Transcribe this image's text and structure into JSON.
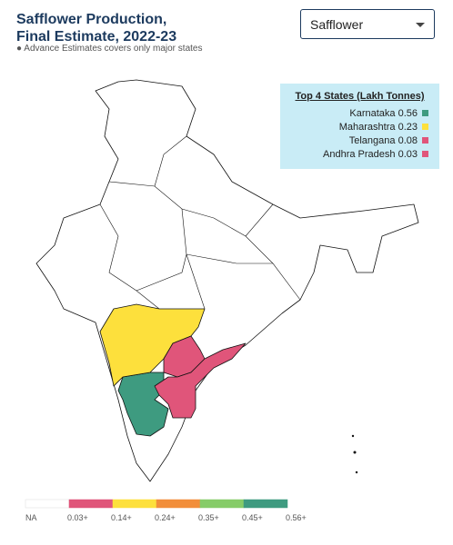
{
  "header": {
    "title_lines": [
      "Safflower Production,",
      "Final Estimate, 2022-23"
    ],
    "note": "Advance Estimates covers only major states"
  },
  "dropdown": {
    "selected": "Safflower"
  },
  "top_states": {
    "title": "Top 4 States (Lakh Tonnes)",
    "rows": [
      {
        "state": "Karnataka",
        "value": 0.56,
        "color": "#3e9b80"
      },
      {
        "state": "Maharashtra",
        "value": 0.23,
        "color": "#fde03c"
      },
      {
        "state": "Telangana",
        "value": 0.08,
        "color": "#e0557a"
      },
      {
        "state": "Andhra Pradesh",
        "value": 0.03,
        "color": "#e0557a"
      }
    ]
  },
  "scale": {
    "colors": [
      "#ffffff",
      "#e0557a",
      "#fde03c",
      "#f28e3a",
      "#86cc68",
      "#3e9b80"
    ],
    "labels": [
      "NA",
      "0.03+",
      "0.14+",
      "0.24+",
      "0.35+",
      "0.45+",
      "0.56+"
    ]
  }
}
